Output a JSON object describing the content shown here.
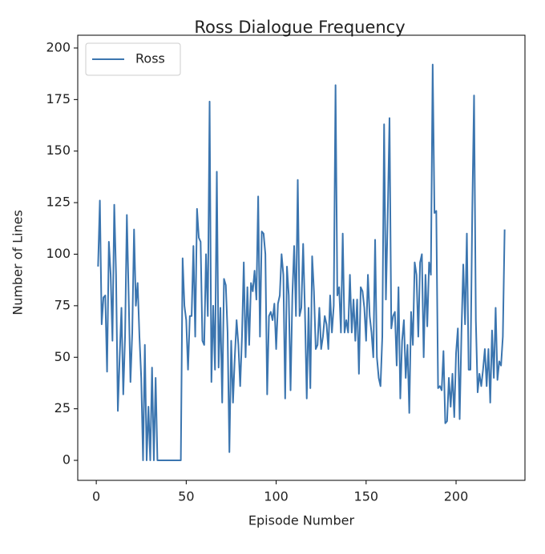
{
  "chart_data": {
    "type": "line",
    "title": "Ross Dialogue Frequency",
    "xlabel": "Episode Number",
    "ylabel": "Number of Lines",
    "x": [
      1,
      2,
      3,
      4,
      5,
      6,
      7,
      8,
      9,
      10,
      11,
      12,
      13,
      14,
      15,
      16,
      17,
      18,
      19,
      20,
      21,
      22,
      23,
      24,
      25,
      26,
      27,
      28,
      29,
      30,
      31,
      32,
      33,
      34,
      35,
      36,
      37,
      38,
      39,
      40,
      41,
      42,
      43,
      44,
      45,
      46,
      47,
      48,
      49,
      50,
      51,
      52,
      53,
      54,
      55,
      56,
      57,
      58,
      59,
      60,
      61,
      62,
      63,
      64,
      65,
      66,
      67,
      68,
      69,
      70,
      71,
      72,
      73,
      74,
      75,
      76,
      77,
      78,
      79,
      80,
      81,
      82,
      83,
      84,
      85,
      86,
      87,
      88,
      89,
      90,
      91,
      92,
      93,
      94,
      95,
      96,
      97,
      98,
      99,
      100,
      101,
      102,
      103,
      104,
      105,
      106,
      107,
      108,
      109,
      110,
      111,
      112,
      113,
      114,
      115,
      116,
      117,
      118,
      119,
      120,
      121,
      122,
      123,
      124,
      125,
      126,
      127,
      128,
      129,
      130,
      131,
      132,
      133,
      134,
      135,
      136,
      137,
      138,
      139,
      140,
      141,
      142,
      143,
      144,
      145,
      146,
      147,
      148,
      149,
      150,
      151,
      152,
      153,
      154,
      155,
      156,
      157,
      158,
      159,
      160,
      161,
      162,
      163,
      164,
      165,
      166,
      167,
      168,
      169,
      170,
      171,
      172,
      173,
      174,
      175,
      176,
      177,
      178,
      179,
      180,
      181,
      182,
      183,
      184,
      185,
      186,
      187,
      188,
      189,
      190,
      191,
      192,
      193,
      194,
      195,
      196,
      197,
      198,
      199,
      200,
      201,
      202,
      203,
      204,
      205,
      206,
      207,
      208,
      209,
      210,
      211,
      212,
      213,
      214,
      215,
      216,
      217,
      218,
      219,
      220,
      221,
      222,
      223,
      224,
      225,
      226,
      227
    ],
    "series": [
      {
        "name": "Ross",
        "color": "#3b75af",
        "values": [
          94,
          126,
          66,
          79,
          80,
          43,
          106,
          90,
          58,
          124,
          90,
          24,
          50,
          74,
          32,
          60,
          119,
          80,
          38,
          62,
          112,
          75,
          86,
          60,
          40,
          0,
          56,
          0,
          26,
          0,
          45,
          0,
          40,
          0,
          0,
          0,
          0,
          0,
          0,
          0,
          0,
          0,
          0,
          0,
          0,
          0,
          0,
          98,
          75,
          68,
          44,
          70,
          70,
          104,
          60,
          122,
          108,
          106,
          58,
          56,
          100,
          70,
          174,
          38,
          75,
          44,
          140,
          45,
          74,
          28,
          88,
          85,
          62,
          4,
          58,
          28,
          50,
          68,
          56,
          36,
          60,
          96,
          50,
          84,
          56,
          86,
          82,
          92,
          78,
          128,
          60,
          111,
          110,
          100,
          32,
          70,
          72,
          68,
          76,
          54,
          76,
          80,
          100,
          90,
          30,
          94,
          80,
          34,
          80,
          104,
          70,
          136,
          70,
          74,
          105,
          72,
          30,
          74,
          35,
          99,
          82,
          54,
          56,
          74,
          54,
          60,
          70,
          66,
          54,
          80,
          62,
          75,
          182,
          80,
          84,
          62,
          110,
          62,
          68,
          62,
          90,
          62,
          78,
          58,
          78,
          42,
          84,
          82,
          74,
          58,
          90,
          70,
          62,
          50,
          107,
          50,
          40,
          36,
          60,
          163,
          78,
          118,
          166,
          64,
          70,
          72,
          46,
          84,
          30,
          58,
          68,
          40,
          56,
          23,
          72,
          56,
          96,
          90,
          60,
          96,
          100,
          50,
          90,
          65,
          96,
          90,
          192,
          120,
          121,
          35,
          36,
          34,
          53,
          18,
          19,
          40,
          26,
          42,
          21,
          52,
          64,
          20,
          62,
          95,
          66,
          110,
          44,
          44,
          120,
          177,
          68,
          33,
          42,
          36,
          44,
          54,
          36,
          54,
          28,
          63,
          40,
          74,
          39,
          48,
          46,
          60,
          112
        ]
      }
    ],
    "xlim": [
      -10.3,
      238.3
    ],
    "ylim": [
      -9.7,
      206.2
    ],
    "xticks": [
      0,
      50,
      100,
      150,
      200
    ],
    "yticks": [
      0,
      25,
      50,
      75,
      100,
      125,
      150,
      175,
      200
    ],
    "legend": "upper left"
  }
}
